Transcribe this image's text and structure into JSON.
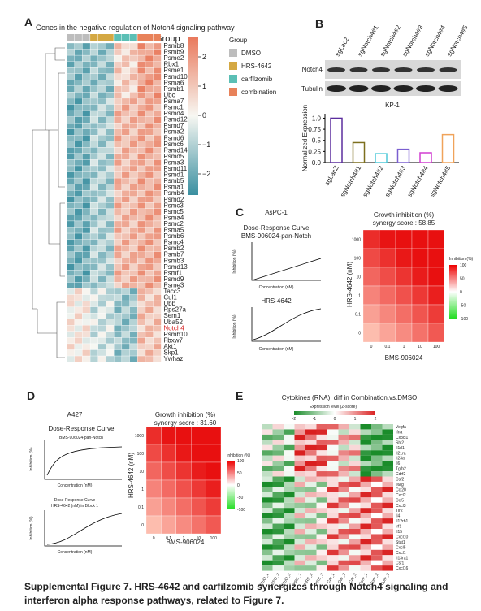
{
  "panel_a": {
    "label": "A",
    "title": "Genes in the negative regulation of Notch4 signaling pathway",
    "group_header": "Group",
    "legend_title": "Group",
    "legend": [
      {
        "name": "DMSO",
        "color": "#bdbdbd"
      },
      {
        "name": "HRS-4642",
        "color": "#d4a843"
      },
      {
        "name": "carfilzomib",
        "color": "#5bbfb5"
      },
      {
        "name": "combination",
        "color": "#e8825a"
      }
    ],
    "scale_ticks": [
      {
        "value": 2,
        "label": "2"
      },
      {
        "value": 1,
        "label": "1"
      },
      {
        "value": 0,
        "label": "0"
      },
      {
        "value": -1,
        "label": "−1"
      },
      {
        "value": -2,
        "label": "−2"
      }
    ],
    "genes": [
      "Psmb8",
      "Psmb9",
      "Psme2",
      "Rbx1",
      "Psme1",
      "Psmd10",
      "Psma6",
      "Psmb1",
      "Ubc",
      "Psma7",
      "Psmc1",
      "Psmd4",
      "Psmd12",
      "Psmd7",
      "Psma2",
      "Psmd6",
      "Psmc6",
      "Psmd14",
      "Psmd5",
      "Psma3",
      "Psmd11",
      "Psmd1",
      "Psmb5",
      "Psma1",
      "Psmb4",
      "Psmd2",
      "Psmc3",
      "Psmc5",
      "Psma4",
      "Psmc2",
      "Psma5",
      "Psmb6",
      "Psmc4",
      "Psmb2",
      "Psmb7",
      "Psmb3",
      "Psmd13",
      "Psmf1",
      "Psmd9",
      "Psme3",
      "Tacc3",
      "Cul1",
      "Ubb",
      "Rps27a",
      "Sem1",
      "Uba52",
      "Notch4",
      "Psmb10",
      "Fbxw7",
      "Akt1",
      "Skp1",
      "Ywhaz"
    ],
    "highlight_gene": "Notch4"
  },
  "panel_b": {
    "label": "B",
    "lanes": [
      "sgLacZ",
      "sgNotch4#1",
      "sgNotch4#2",
      "sgNotch4#3",
      "sgNotch4#4",
      "sgNotch4#5"
    ],
    "blots": [
      "Notch4",
      "Tubulin"
    ],
    "chart_data": {
      "type": "bar",
      "title": "KP-1",
      "y_label": "Normalized Expression",
      "categories": [
        "sgLacZ",
        "sgNotch4#1",
        "sgNotch4#2",
        "sgNotch4#3",
        "sgNotch4#4",
        "sgNotch4#5"
      ],
      "values": [
        1.0,
        0.45,
        0.2,
        0.3,
        0.22,
        0.63
      ],
      "colors": [
        "#5b2d9e",
        "#7d6f1e",
        "#4fc9d9",
        "#7a5fd0",
        "#d13fd1",
        "#f0a35a"
      ],
      "ylim": [
        0,
        1.1
      ],
      "yticks": [
        {
          "value": 0,
          "label": "0.0"
        },
        {
          "value": 0.25,
          "label": "0.25"
        },
        {
          "value": 0.5,
          "label": "0.5"
        },
        {
          "value": 0.75,
          "label": "0.75"
        },
        {
          "value": 1,
          "label": "1.0"
        }
      ]
    }
  },
  "panel_c": {
    "label": "C",
    "cell_line": "AsPC-1",
    "curve_title": "Dose-Response Curve",
    "curve1": "BMS-906024-pan-Notch",
    "curve2": "HRS-4642",
    "curve_xlabel": "Concentration (nM)",
    "curve_ylabel": "Inhibition (%)",
    "heat_title": "Growth inhibition (%)",
    "synergy": "synergy score : 58.85",
    "heat_ylabel": "HRS-4642 (nM)",
    "heat_xlabel": "BMS-906024",
    "heat_yticks": [
      "1000",
      "100",
      "10",
      "1",
      "0.1",
      "0"
    ],
    "heat_xticks": [
      "0",
      "0.1",
      "1",
      "10",
      "100"
    ],
    "colorbar_title": "Inhibition (%)",
    "colorbar_ticks": [
      "100",
      "50",
      "0",
      "-50",
      "-100"
    ]
  },
  "panel_d": {
    "label": "D",
    "cell_line": "A427",
    "curve_title": "Dose-Response Curve",
    "curve1": "BMS-906024-pan-Notch",
    "curve2_title": "Dose-Response Curve",
    "curve2": "HRS-4642 (nM) in Block 1",
    "curve_xlabel": "Concentration (nM)",
    "curve_ylabel": "Inhibition (%)",
    "heat_title": "Growth inhibition (%)",
    "synergy": "synergy score : 31.60",
    "heat_ylabel": "HRS-4642 (nM)",
    "heat_xlabel": "BMS-906024",
    "heat_yticks": [
      "1000",
      "100",
      "10",
      "1",
      "0.1",
      "0"
    ],
    "heat_xticks": [
      "0",
      "0.1",
      "1",
      "10",
      "100"
    ],
    "colorbar_title": "Inhibition (%)",
    "colorbar_ticks": [
      "100",
      "50",
      "0",
      "-50",
      "-100"
    ]
  },
  "panel_e": {
    "label": "E",
    "title": "Cytokines (RNA)_diff in Combination.vs.DMSO",
    "legend_title": "Expression level (Z-score)",
    "legend_ticks": [
      "-2",
      "-1",
      "0",
      "1",
      "2"
    ],
    "genes": [
      "Vegfa",
      "Ifna",
      "Cx3cl1",
      "Shl2",
      "Il1rl1",
      "Il21ra",
      "Il23a",
      "Il6",
      "Tgfb2",
      "Cdrf2",
      "Csf2",
      "Il6rg",
      "Ccl20",
      "Cxcl2",
      "Ccl5",
      "Cxcl3",
      "Tlr2",
      "Il4",
      "Il12rb1",
      "Irf1",
      "Il15",
      "Cxcl10",
      "Stat1",
      "Cxcl5",
      "Cxcl1",
      "Il13ra1",
      "Csf1",
      "Cxcl16"
    ],
    "samples": [
      "DMSO_1",
      "DMSO_2",
      "DMSO_3",
      "HRS_1",
      "HRS_2",
      "HRS_3",
      "Car_1",
      "Car_2",
      "Car_3",
      "Com_1",
      "Com_2",
      "Com_3"
    ]
  },
  "caption": [
    "Supplemental Figure 7. HRS-4642 and carfilzomib synergizes through Notch4 signaling and",
    "interferon alpha response pathways, related to Figure 7."
  ]
}
